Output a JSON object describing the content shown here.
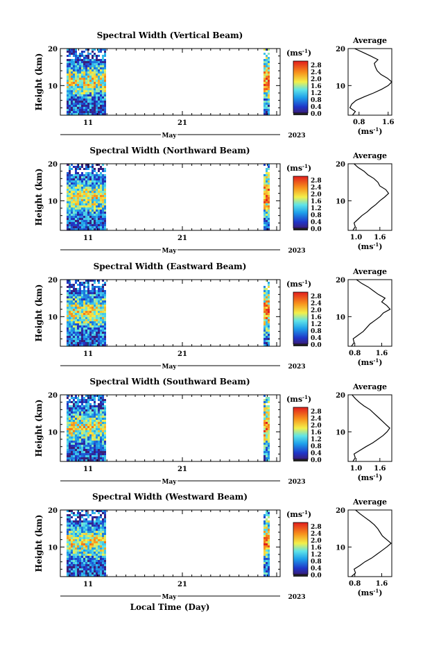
{
  "figure": {
    "xlabel": "Local Time (Day)",
    "month_label": "May",
    "year_label": "2023",
    "ylabel": "Height (km)",
    "colorbar_unit": "(ms",
    "unit_exponent": "-1",
    "profile_title": "Average"
  },
  "chart_data": [
    {
      "type": "heatmap",
      "title": "Spectral Width (Vertical Beam)",
      "xlabel": "Local Time (Day)",
      "ylabel": "Height (km)",
      "x_ticklabels": [
        "11",
        "21"
      ],
      "y_ticklabels": [
        "10",
        "20"
      ],
      "ylim": [
        2,
        20
      ],
      "colorbar": {
        "unit": "(ms-1)",
        "range": [
          0.0,
          2.8
        ],
        "ticklabels": [
          "2.8",
          "2.4",
          "2.0",
          "1.6",
          "1.2",
          "0.8",
          "0.4",
          "0.0"
        ]
      },
      "profile": {
        "title": "Average",
        "xlabel": "(ms-1)",
        "x_ticklabels": [
          "0.8",
          "1.6"
        ],
        "xlim": [
          0.5,
          1.7
        ],
        "heights": [
          2,
          3,
          4,
          5,
          6,
          7,
          8,
          9,
          10,
          11,
          12,
          13,
          14,
          15,
          16,
          17,
          18,
          19,
          20
        ],
        "values": [
          0.62,
          0.7,
          0.55,
          0.6,
          0.72,
          0.95,
          1.2,
          1.42,
          1.6,
          1.7,
          1.58,
          1.4,
          1.3,
          1.25,
          1.22,
          1.32,
          1.12,
          0.9,
          0.68
        ]
      }
    },
    {
      "type": "heatmap",
      "title": "Spectral Width (Northward Beam)",
      "xlabel": "Local Time (Day)",
      "ylabel": "Height (km)",
      "x_ticklabels": [
        "11",
        "21"
      ],
      "y_ticklabels": [
        "10",
        "20"
      ],
      "ylim": [
        2,
        20
      ],
      "colorbar": {
        "unit": "(ms-1)",
        "range": [
          0.0,
          2.8
        ],
        "ticklabels": [
          "2.8",
          "2.4",
          "2.0",
          "1.6",
          "1.2",
          "0.8",
          "0.4",
          "0.0"
        ]
      },
      "profile": {
        "title": "Average",
        "xlabel": "(ms-1)",
        "x_ticklabels": [
          "1.0",
          "1.6"
        ],
        "xlim": [
          0.8,
          1.9
        ],
        "heights": [
          2,
          3,
          4,
          5,
          6,
          7,
          8,
          9,
          10,
          11,
          12,
          13,
          14,
          15,
          16,
          17,
          18,
          19,
          20
        ],
        "values": [
          0.92,
          0.98,
          0.95,
          1.05,
          1.15,
          1.28,
          1.38,
          1.5,
          1.6,
          1.72,
          1.82,
          1.75,
          1.6,
          1.55,
          1.45,
          1.3,
          1.2,
          1.05,
          0.95
        ]
      }
    },
    {
      "type": "heatmap",
      "title": "Spectral Width (Eastward Beam)",
      "xlabel": "Local Time (Day)",
      "ylabel": "Height (km)",
      "x_ticklabels": [
        "11",
        "21"
      ],
      "y_ticklabels": [
        "10",
        "20"
      ],
      "ylim": [
        2,
        20
      ],
      "colorbar": {
        "unit": "(ms-1)",
        "range": [
          0.0,
          2.8
        ],
        "ticklabels": [
          "2.8",
          "2.4",
          "2.0",
          "1.6",
          "1.2",
          "0.8",
          "0.4",
          "0.0"
        ]
      },
      "profile": {
        "title": "Average",
        "xlabel": "(ms-1)",
        "x_ticklabels": [
          "0.8",
          "1.6"
        ],
        "xlim": [
          0.6,
          1.9
        ],
        "heights": [
          2,
          3,
          4,
          5,
          6,
          7,
          8,
          9,
          10,
          11,
          12,
          13,
          14,
          15,
          16,
          17,
          18,
          19,
          20
        ],
        "values": [
          0.7,
          0.78,
          0.75,
          0.9,
          1.05,
          1.15,
          1.25,
          1.4,
          1.55,
          1.65,
          1.85,
          1.75,
          1.6,
          1.7,
          1.5,
          1.35,
          1.2,
          1.0,
          0.85
        ]
      }
    },
    {
      "type": "heatmap",
      "title": "Spectral Width (Southward Beam)",
      "xlabel": "Local Time (Day)",
      "ylabel": "Height (km)",
      "x_ticklabels": [
        "11",
        "21"
      ],
      "y_ticklabels": [
        "10",
        "20"
      ],
      "ylim": [
        2,
        20
      ],
      "colorbar": {
        "unit": "(ms-1)",
        "range": [
          0.0,
          2.8
        ],
        "ticklabels": [
          "2.8",
          "2.4",
          "2.0",
          "1.6",
          "1.2",
          "0.8",
          "0.4",
          "0.0"
        ]
      },
      "profile": {
        "title": "Average",
        "xlabel": "(ms-1)",
        "x_ticklabels": [
          "1.0",
          "1.6"
        ],
        "xlim": [
          0.8,
          1.9
        ],
        "heights": [
          2,
          3,
          4,
          5,
          6,
          7,
          8,
          9,
          10,
          11,
          12,
          13,
          14,
          15,
          16,
          17,
          18,
          19,
          20
        ],
        "values": [
          0.92,
          0.98,
          0.95,
          1.1,
          1.25,
          1.42,
          1.55,
          1.68,
          1.78,
          1.85,
          1.75,
          1.65,
          1.55,
          1.45,
          1.35,
          1.2,
          1.08,
          0.98,
          0.9
        ]
      }
    },
    {
      "type": "heatmap",
      "title": "Spectral Width (Westward Beam)",
      "xlabel": "Local Time (Day)",
      "ylabel": "Height (km)",
      "x_ticklabels": [
        "11",
        "21"
      ],
      "y_ticklabels": [
        "10",
        "20"
      ],
      "ylim": [
        2,
        20
      ],
      "colorbar": {
        "unit": "(ms-1)",
        "range": [
          0.0,
          2.8
        ],
        "ticklabels": [
          "2.8",
          "2.4",
          "2.0",
          "1.6",
          "1.2",
          "0.8",
          "0.4",
          "0.0"
        ]
      },
      "profile": {
        "title": "Average",
        "xlabel": "(ms-1)",
        "x_ticklabels": [
          "0.8",
          "1.6"
        ],
        "xlim": [
          0.6,
          1.9
        ],
        "heights": [
          2,
          3,
          4,
          5,
          6,
          7,
          8,
          9,
          10,
          11,
          12,
          13,
          14,
          15,
          16,
          17,
          18,
          19,
          20
        ],
        "values": [
          0.7,
          0.82,
          0.78,
          0.95,
          1.1,
          1.3,
          1.45,
          1.6,
          1.75,
          1.88,
          1.75,
          1.62,
          1.55,
          1.48,
          1.38,
          1.25,
          1.1,
          0.95,
          0.82
        ]
      }
    }
  ]
}
